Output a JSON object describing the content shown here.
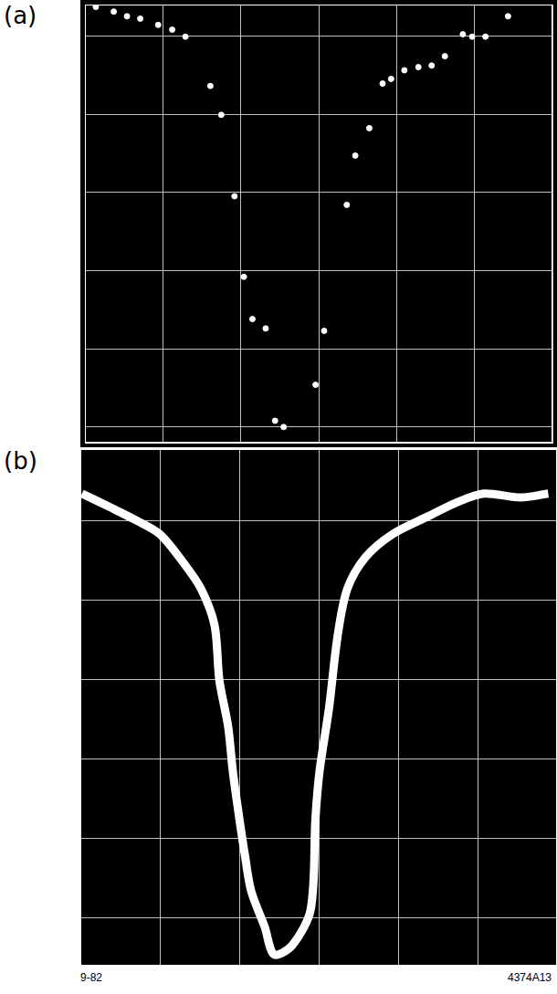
{
  "chart_data": [
    {
      "type": "scatter",
      "title": "(a)",
      "color": "#ffffff",
      "marker": "circle",
      "grid": true,
      "tick_labels": false,
      "xlim": [
        0,
        6
      ],
      "xticks": [
        0,
        1,
        2,
        3,
        4,
        5,
        6
      ],
      "ylim": [
        -0.2,
        5.4
      ],
      "yticks": [
        0,
        1,
        2,
        3,
        4,
        5
      ],
      "x": [
        0.14,
        0.37,
        0.54,
        0.71,
        0.94,
        1.12,
        1.29,
        1.61,
        1.75,
        1.92,
        2.04,
        2.15,
        2.32,
        2.44,
        2.55,
        2.96,
        3.07,
        3.36,
        3.47,
        3.65,
        3.82,
        3.93,
        4.1,
        4.28,
        4.45,
        4.62,
        4.85,
        4.97,
        5.14,
        5.43
      ],
      "values": [
        5.37,
        5.31,
        5.25,
        5.22,
        5.14,
        5.08,
        4.99,
        4.36,
        3.99,
        2.95,
        1.92,
        1.38,
        1.26,
        0.08,
        0.0,
        0.54,
        1.23,
        2.84,
        3.47,
        3.82,
        4.39,
        4.45,
        4.56,
        4.6,
        4.62,
        4.74,
        5.02,
        4.99,
        4.99,
        5.25
      ]
    },
    {
      "type": "line",
      "title": "(b)",
      "color": "#ffffff",
      "marker": "none",
      "line_style": "solid",
      "grid": true,
      "tick_labels": false,
      "xlim": [
        0,
        6
      ],
      "xticks": [
        0,
        1,
        2,
        3,
        4,
        5,
        6
      ],
      "ylim": [
        -0.6,
        5.9
      ],
      "yticks": [
        0,
        1,
        2,
        3,
        4,
        5
      ],
      "x": [
        0.02,
        0.37,
        0.71,
        1.0,
        1.29,
        1.52,
        1.69,
        1.75,
        1.86,
        1.92,
        2.0,
        2.07,
        2.15,
        2.32,
        2.44,
        2.67,
        2.9,
        2.96,
        3.01,
        3.13,
        3.24,
        3.36,
        3.59,
        3.93,
        4.39,
        4.74,
        5.08,
        5.54,
        5.89
      ],
      "values": [
        5.34,
        5.17,
        5.0,
        4.83,
        4.48,
        4.14,
        3.68,
        2.99,
        2.41,
        1.84,
        1.26,
        0.8,
        0.34,
        -0.11,
        -0.46,
        -0.34,
        0.11,
        1.26,
        1.84,
        2.64,
        3.56,
        4.14,
        4.54,
        4.83,
        5.06,
        5.23,
        5.34,
        5.29,
        5.34
      ],
      "annotations": [
        "9-82",
        "4374A13"
      ]
    }
  ]
}
